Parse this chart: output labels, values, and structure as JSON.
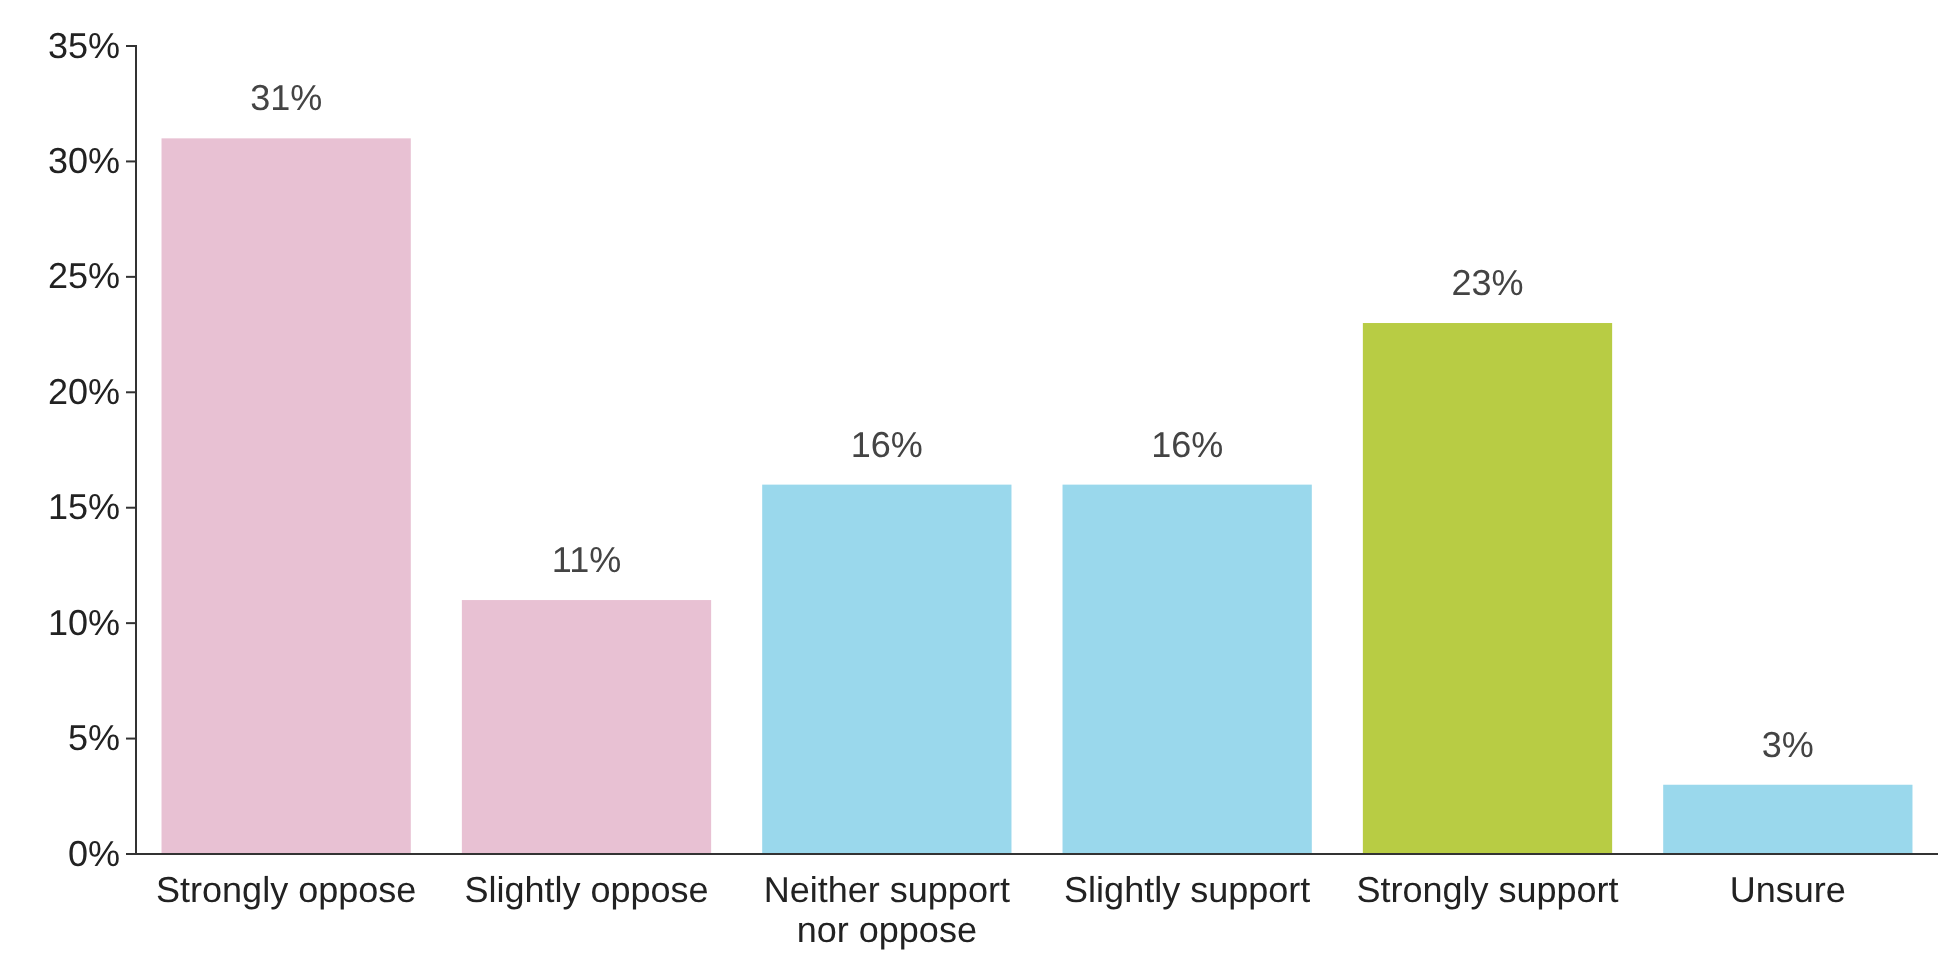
{
  "chart_data": {
    "type": "bar",
    "categories": [
      "Strongly oppose",
      "Slightly oppose",
      "Neither support nor oppose",
      "Slightly support",
      "Strongly support",
      "Unsure"
    ],
    "values": [
      31,
      11,
      16,
      16,
      23,
      3
    ],
    "colors": [
      "#e8c1d3",
      "#e8c1d3",
      "#9ad8ec",
      "#9ad8ec",
      "#b8cc44",
      "#9ad8ec"
    ],
    "value_labels": [
      "31%",
      "11%",
      "16%",
      "16%",
      "23%",
      "3%"
    ],
    "ylim": [
      0,
      35
    ],
    "yticks": [
      {
        "value": 0,
        "label": "0%"
      },
      {
        "value": 5,
        "label": "5%"
      },
      {
        "value": 10,
        "label": "10%"
      },
      {
        "value": 15,
        "label": "15%"
      },
      {
        "value": 20,
        "label": "20%"
      },
      {
        "value": 25,
        "label": "25%"
      },
      {
        "value": 30,
        "label": "30%"
      },
      {
        "value": 35,
        "label": "35%"
      }
    ],
    "grid": false
  }
}
